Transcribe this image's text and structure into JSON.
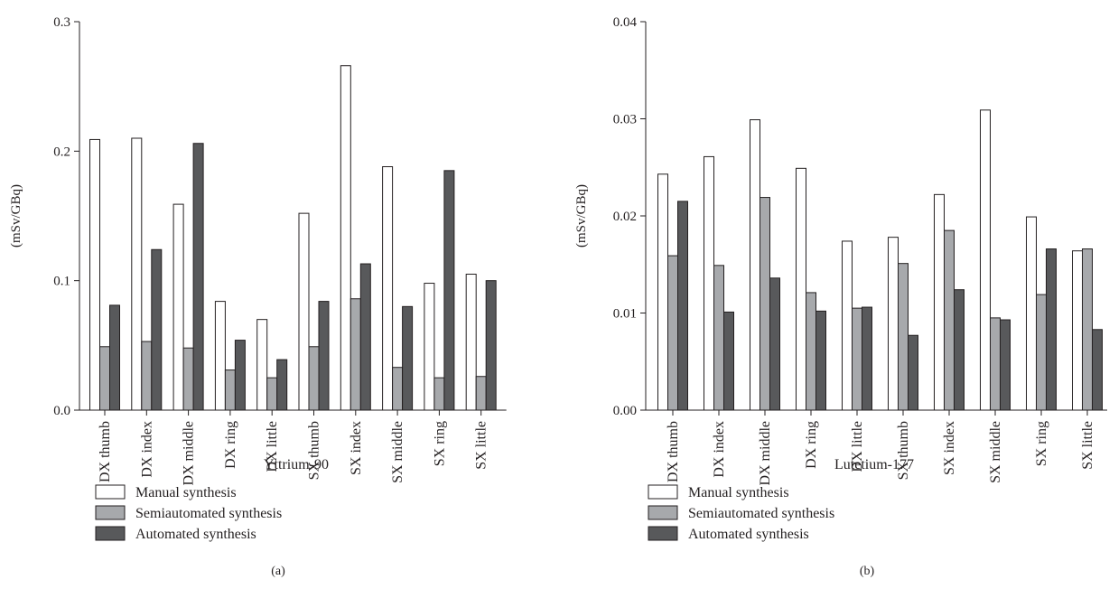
{
  "chart_data": [
    {
      "type": "bar",
      "panel_label": "(a)",
      "xlabel": "Yttrium-90",
      "ylabel": "(mSv/GBq)",
      "ylim": [
        0,
        0.3
      ],
      "yticks": [
        "0.0",
        "0.1",
        "0.2",
        "0.3"
      ],
      "categories": [
        "DX thumb",
        "DX index",
        "DX middle",
        "DX ring",
        "DX little",
        "SX thumb",
        "SX index",
        "SX middle",
        "SX ring",
        "SX little"
      ],
      "series": [
        {
          "name": "Manual synthesis",
          "color": "#ffffff",
          "values": [
            0.209,
            0.21,
            0.159,
            0.084,
            0.07,
            0.152,
            0.266,
            0.188,
            0.098,
            0.105
          ]
        },
        {
          "name": "Semiautomated synthesis",
          "color": "#a7a9ac",
          "values": [
            0.049,
            0.053,
            0.048,
            0.031,
            0.025,
            0.049,
            0.086,
            0.033,
            0.025,
            0.026
          ]
        },
        {
          "name": "Automated synthesis",
          "color": "#58595b",
          "values": [
            0.081,
            0.124,
            0.206,
            0.054,
            0.039,
            0.084,
            0.113,
            0.08,
            0.185,
            0.1
          ]
        }
      ],
      "legend": [
        "Manual synthesis",
        "Semiautomated synthesis",
        "Automated synthesis"
      ]
    },
    {
      "type": "bar",
      "panel_label": "(b)",
      "xlabel": "Lutetium-177",
      "ylabel": "(mSv/GBq)",
      "ylim": [
        0,
        0.04
      ],
      "yticks": [
        "0.00",
        "0.01",
        "0.02",
        "0.03",
        "0.04"
      ],
      "categories": [
        "DX thumb",
        "DX index",
        "DX middle",
        "DX ring",
        "DX little",
        "SX thumb",
        "SX index",
        "SX middle",
        "SX ring",
        "SX little"
      ],
      "series": [
        {
          "name": "Manual synthesis",
          "color": "#ffffff",
          "values": [
            0.0243,
            0.0261,
            0.0299,
            0.0249,
            0.0174,
            0.0178,
            0.0222,
            0.0309,
            0.0199,
            0.0164
          ]
        },
        {
          "name": "Semiautomated synthesis",
          "color": "#a7a9ac",
          "values": [
            0.0159,
            0.0149,
            0.0219,
            0.0121,
            0.0105,
            0.0151,
            0.0185,
            0.0095,
            0.0119,
            0.0166
          ]
        },
        {
          "name": "Automated synthesis",
          "color": "#58595b",
          "values": [
            0.0215,
            0.0101,
            0.0136,
            0.0102,
            0.0106,
            0.0077,
            0.0124,
            0.0093,
            0.0166,
            0.0083
          ]
        }
      ],
      "legend": [
        "Manual synthesis",
        "Semiautomated synthesis",
        "Automated synthesis"
      ]
    }
  ]
}
